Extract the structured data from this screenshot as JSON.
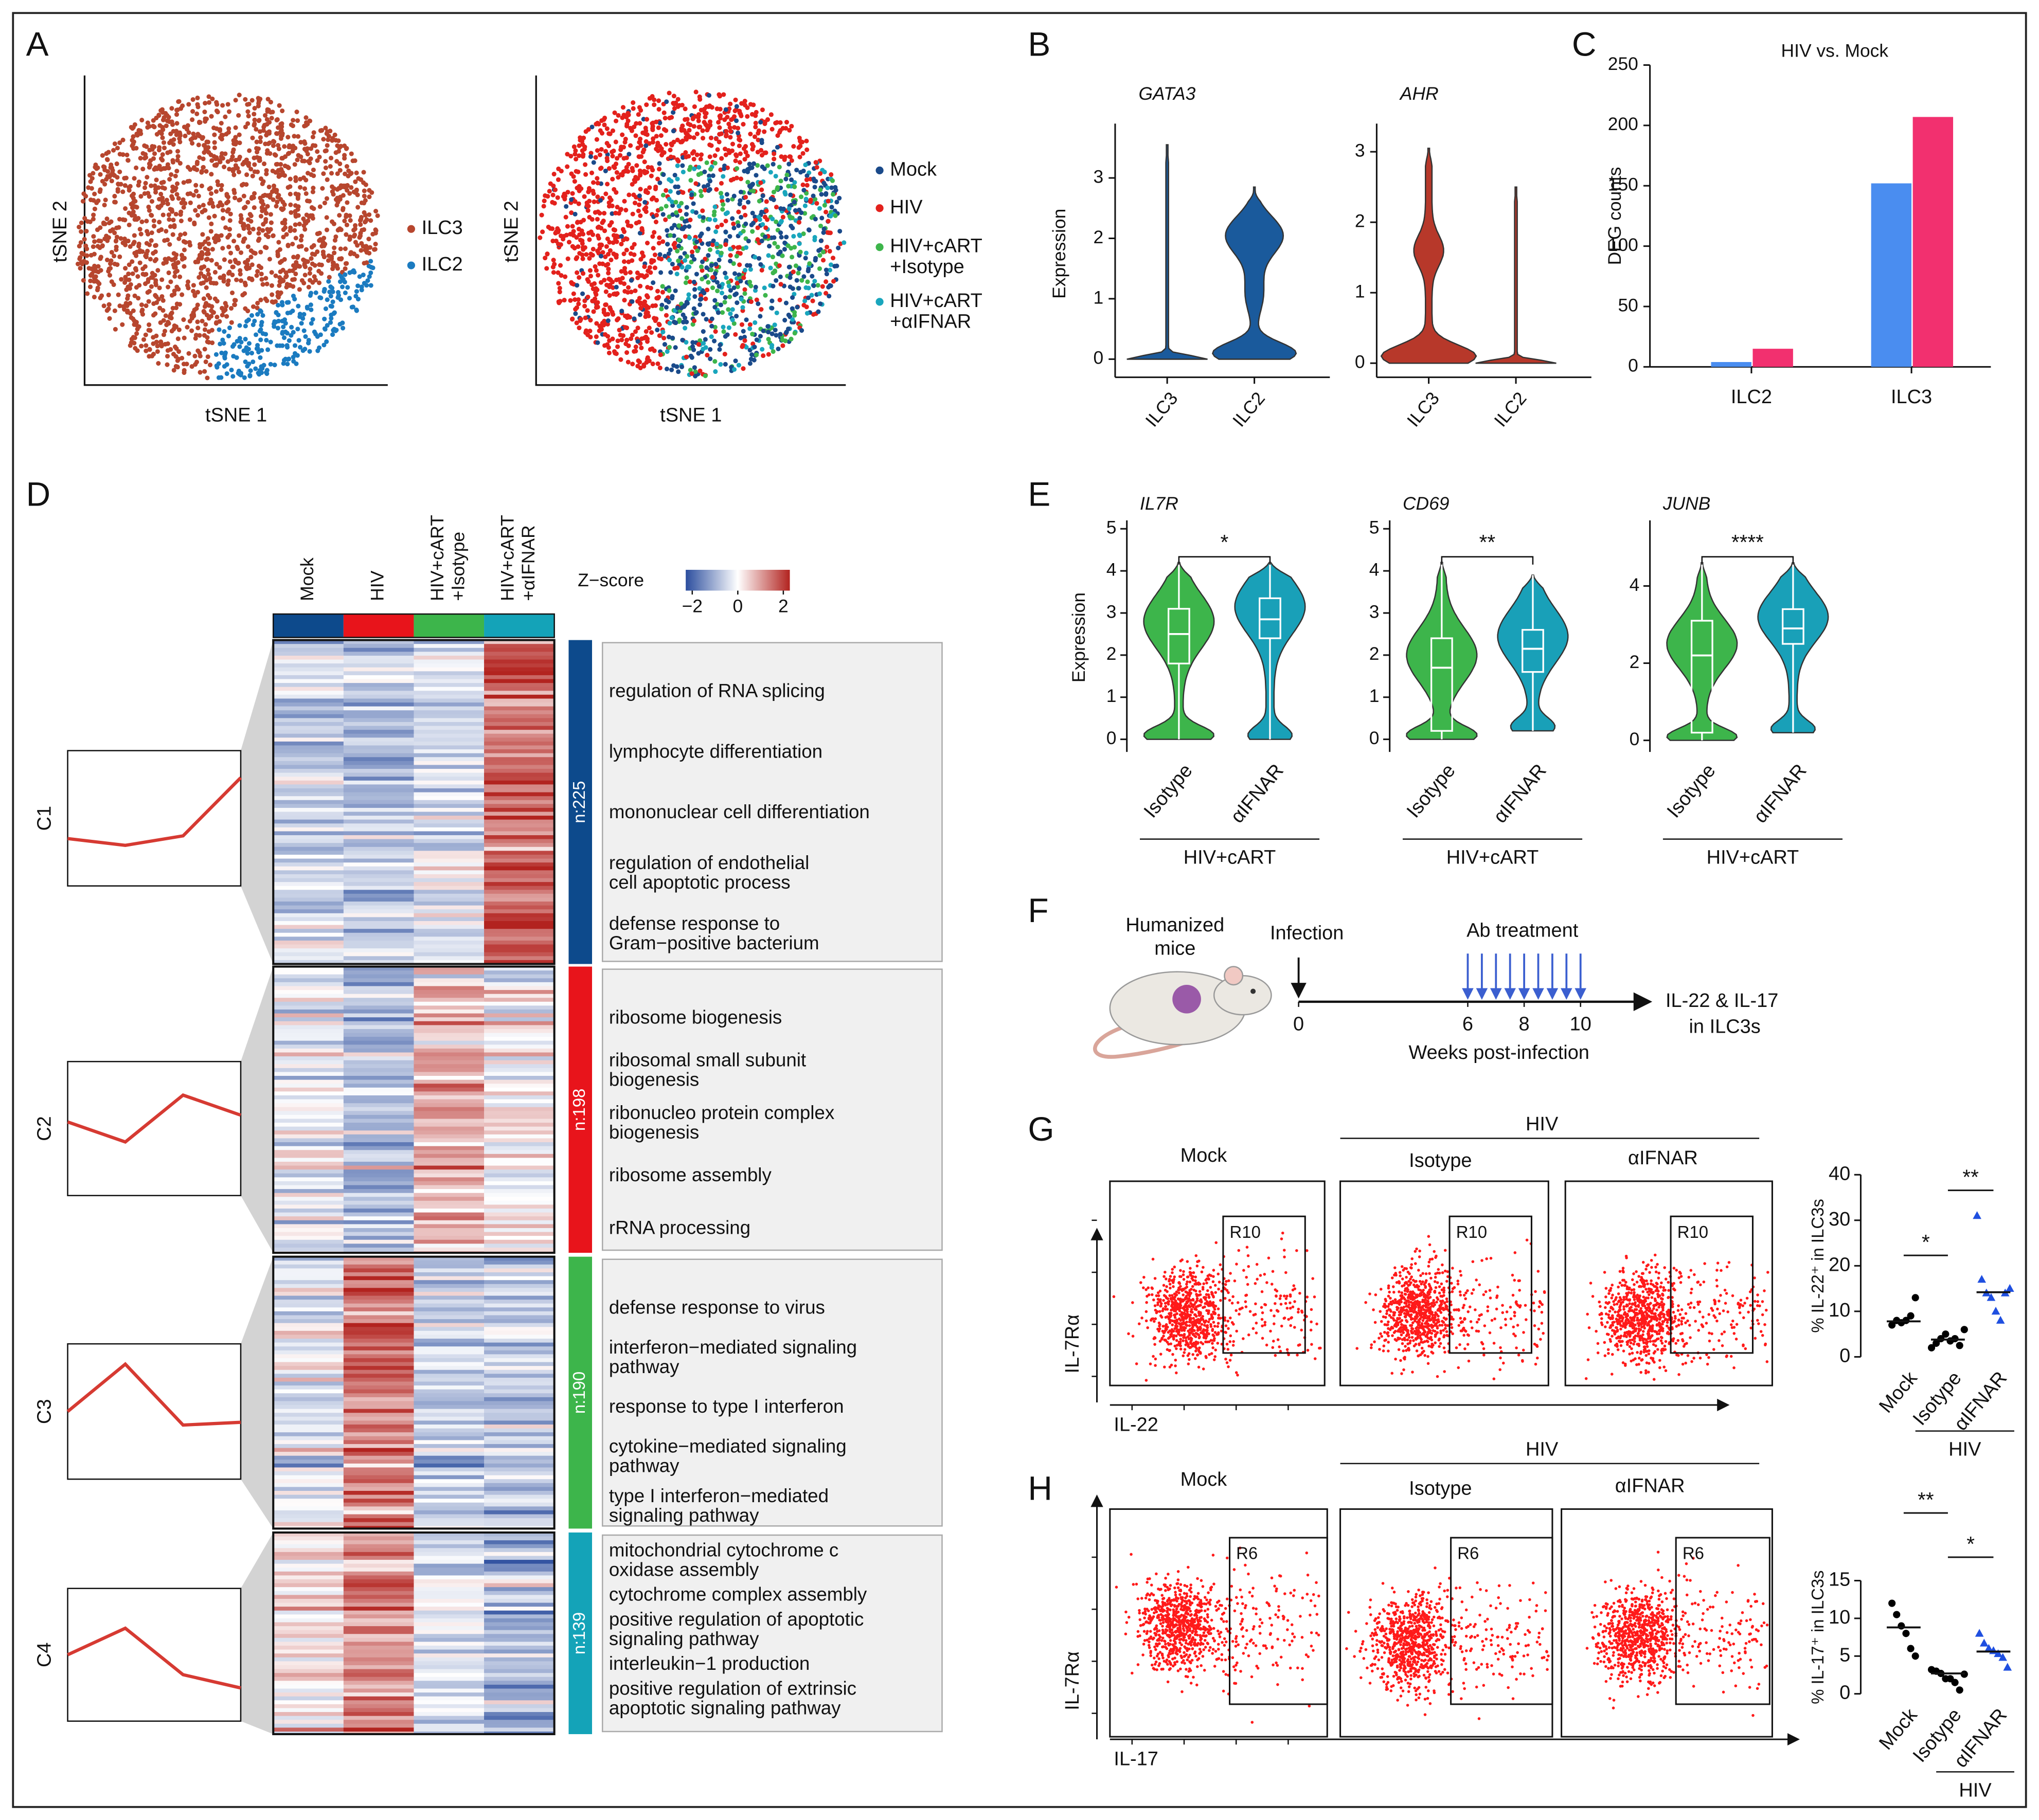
{
  "panels": {
    "A": {
      "label": "A",
      "left": {
        "xlabel": "tSNE 1",
        "ylabel": "tSNE 2",
        "legend": [
          {
            "name": [
              "ILC3"
            ],
            "color": "#b7462e"
          },
          {
            "name": [
              "ILC2"
            ],
            "color": "#1b7bc0"
          }
        ]
      },
      "right": {
        "xlabel": "tSNE 1",
        "ylabel": "tSNE 2",
        "legend": [
          {
            "name": [
              "Mock"
            ],
            "color": "#1a4a8a"
          },
          {
            "name": [
              "HIV"
            ],
            "color": "#e3211c"
          },
          {
            "name": [
              "HIV+cART",
              "+Isotype"
            ],
            "color": "#3db54b"
          },
          {
            "name": [
              "HIV+cART",
              "+αIFNAR"
            ],
            "color": "#19a6bd"
          }
        ]
      }
    },
    "B": {
      "label": "B",
      "ylabel": "Expression",
      "plots": [
        {
          "gene": "GATA3",
          "categories": [
            "ILC3",
            "ILC2"
          ],
          "color": "#1a5a9c",
          "ylim": [
            -0.3,
            3.9
          ],
          "yticks": [
            0,
            1,
            2,
            3
          ]
        },
        {
          "gene": "AHR",
          "categories": [
            "ILC3",
            "ILC2"
          ],
          "color": "#b7382a",
          "ylim": [
            -0.2,
            3.4
          ],
          "yticks": [
            0,
            1,
            2,
            3
          ]
        }
      ]
    },
    "C": {
      "label": "C",
      "type": "bar",
      "title": "HIV vs. Mock",
      "ylabel": "DEG counts",
      "categories": [
        "ILC2",
        "ILC3"
      ],
      "series": [
        {
          "color": "#4a8df0",
          "values": [
            4,
            152
          ]
        },
        {
          "color": "#f2306f",
          "values": [
            15,
            207
          ]
        }
      ],
      "ylim": [
        0,
        250
      ],
      "yticks": [
        0,
        50,
        100,
        150,
        200,
        250
      ]
    },
    "D": {
      "label": "D",
      "columns": [
        [
          "Mock"
        ],
        [
          "HIV"
        ],
        [
          "HIV+cART",
          "+Isotype"
        ],
        [
          "HIV+cART",
          "+αIFNAR"
        ]
      ],
      "column_colors": [
        "#0d4a8c",
        "#e8141b",
        "#3db54b",
        "#14a3b8"
      ],
      "zscore_label": "Z−score",
      "zscore_ticks": [
        {
          "value": -2,
          "label": "−2"
        },
        0,
        2
      ],
      "clusters": [
        {
          "name": "C1",
          "n": "n:225",
          "color": "#0d4a8c",
          "trend": [
            0.35,
            0.3,
            0.37,
            0.8
          ],
          "terms": [
            [
              "regulation of RNA splicing"
            ],
            [
              "lymphocyte differentiation"
            ],
            [
              "mononuclear cell differentiation"
            ],
            [
              "regulation of endothelial",
              "cell apoptotic process"
            ],
            [
              "defense response to",
              "Gram−positive bacterium"
            ]
          ]
        },
        {
          "name": "C2",
          "n": "n:198",
          "color": "#e8141b",
          "trend": [
            0.55,
            0.4,
            0.75,
            0.6
          ],
          "terms": [
            [
              "ribosome biogenesis"
            ],
            [
              "ribosomal small subunit",
              "biogenesis"
            ],
            [
              "ribonucleo protein complex",
              "biogenesis"
            ],
            [
              "ribosome assembly"
            ],
            [
              "rRNA processing"
            ]
          ]
        },
        {
          "name": "C3",
          "n": "n:190",
          "color": "#3db54b",
          "trend": [
            0.5,
            0.85,
            0.4,
            0.42
          ],
          "terms": [
            [
              "defense response to virus"
            ],
            [
              "interferon−mediated signaling",
              "pathway"
            ],
            [
              "response to type I interferon"
            ],
            [
              "cytokine−mediated signaling",
              "pathway"
            ],
            [
              "type I interferon−mediated",
              "signaling pathway"
            ]
          ]
        },
        {
          "name": "C4",
          "n": "n:139",
          "color": "#14a3b8",
          "trend": [
            0.5,
            0.7,
            0.35,
            0.25
          ],
          "terms": [
            [
              "mitochondrial cytochrome c",
              "oxidase assembly"
            ],
            [
              "cytochrome complex assembly"
            ],
            [
              "positive regulation of apoptotic",
              "signaling pathway"
            ],
            [
              "interleukin−1 production"
            ],
            [
              "positive regulation of extrinsic",
              "apoptotic signaling pathway"
            ]
          ]
        }
      ]
    },
    "E": {
      "label": "E",
      "ylabel": "Expression",
      "group": "HIV+cART",
      "colors": [
        "#3db54b",
        "#19a0b8"
      ],
      "plots": [
        {
          "gene": "IL7R",
          "categories": [
            "Isotype",
            "αIFNAR"
          ],
          "significance": "*",
          "ylim": [
            -0.3,
            5.2
          ],
          "yticks": [
            0,
            1,
            2,
            3,
            4,
            5
          ],
          "boxes": [
            {
              "min": 0,
              "q1": 1.8,
              "median": 2.5,
              "q3": 3.1,
              "max": 4.2
            },
            {
              "min": 0,
              "q1": 2.4,
              "median": 2.85,
              "q3": 3.35,
              "max": 4.2
            }
          ]
        },
        {
          "gene": "CD69",
          "categories": [
            "Isotype",
            "αIFNAR"
          ],
          "significance": "**",
          "ylim": [
            -0.3,
            5.2
          ],
          "yticks": [
            0,
            1,
            2,
            3,
            4,
            5
          ],
          "boxes": [
            {
              "min": 0,
              "q1": 0.2,
              "median": 1.7,
              "q3": 2.4,
              "max": 4.2
            },
            {
              "min": 0.2,
              "q1": 1.6,
              "median": 2.15,
              "q3": 2.6,
              "max": 3.9
            }
          ]
        },
        {
          "gene": "JUNB",
          "categories": [
            "Isotype",
            "αIFNAR"
          ],
          "significance": "****",
          "ylim": [
            -0.3,
            5.7
          ],
          "yticks": [
            0,
            2,
            4
          ],
          "boxes": [
            {
              "min": 0,
              "q1": 0.2,
              "median": 2.2,
              "q3": 3.1,
              "max": 4.6
            },
            {
              "min": 0.2,
              "q1": 2.5,
              "median": 2.9,
              "q3": 3.4,
              "max": 4.6
            }
          ]
        }
      ]
    },
    "F": {
      "label": "F",
      "mice": [
        "Humanized",
        "mice"
      ],
      "infection": "Infection",
      "treatment": "Ab treatment",
      "xlim": [
        0,
        12
      ],
      "xticks": [
        0,
        6,
        8,
        10
      ],
      "treatment_weeks": [
        6,
        6.5,
        7,
        7.5,
        8,
        8.5,
        9,
        9.5,
        10
      ],
      "xlabel": "Weeks post-infection",
      "readout": [
        "IL-22 & IL-17",
        "in ILC3s"
      ]
    },
    "G": {
      "label": "G",
      "hiv_label": "HIV",
      "flow": {
        "titles": [
          "Mock",
          "Isotype",
          "αIFNAR"
        ],
        "gate": "R10",
        "xlabel": "IL-22",
        "ylabel": "IL-7Rα"
      },
      "plot": {
        "ylabel": "% IL-22⁺ in ILC3s",
        "ylim": [
          0,
          40
        ],
        "yticks": [
          0,
          10,
          20,
          30,
          40
        ],
        "categories": [
          "Mock",
          "Isotype",
          "αIFNAR"
        ],
        "points": [
          [
            7,
            8,
            7.5,
            8,
            9,
            13
          ],
          [
            2,
            3,
            4,
            5,
            3.5,
            4,
            2.5,
            6
          ],
          [
            31,
            17,
            14,
            13,
            10,
            8,
            14,
            15
          ]
        ],
        "medians": [
          7.8,
          3.8,
          14.2
        ],
        "colors": [
          "#000000",
          "#000000",
          "#1f4fe0"
        ],
        "markers": [
          "circle",
          "circle",
          "triangle"
        ],
        "significance": [
          "*",
          "**"
        ],
        "group": "HIV"
      }
    },
    "H": {
      "label": "H",
      "hiv_label": "HIV",
      "flow": {
        "titles": [
          "Mock",
          "Isotype",
          "αIFNAR"
        ],
        "gate": "R6",
        "xlabel": "IL-17",
        "ylabel": "IL-7Rα"
      },
      "plot": {
        "ylabel": "% IL-17⁺ in ILC3s",
        "ylim": [
          0,
          15
        ],
        "yticks": [
          0,
          5,
          10,
          15
        ],
        "categories": [
          "Mock",
          "Isotype",
          "αIFNAR"
        ],
        "points": [
          [
            12,
            10.5,
            9,
            8,
            6,
            5
          ],
          [
            3.2,
            3,
            2.7,
            2,
            2,
            1.5,
            0.5,
            2.6
          ],
          [
            8,
            6.7,
            6,
            5.7,
            5.3,
            4.8,
            3.5
          ]
        ],
        "medians": [
          8.8,
          2.7,
          5.6
        ],
        "colors": [
          "#000000",
          "#000000",
          "#1f4fe0"
        ],
        "markers": [
          "circle",
          "circle",
          "triangle"
        ],
        "significance": [
          "**",
          "*"
        ],
        "group": "HIV"
      }
    }
  }
}
